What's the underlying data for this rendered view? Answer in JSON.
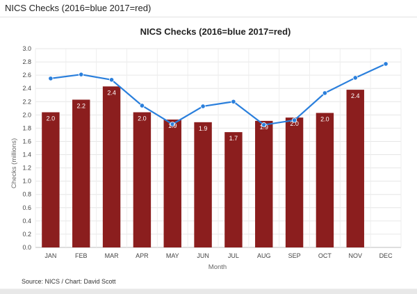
{
  "page": {
    "header_title": "NICS Checks (2016=blue 2017=red)"
  },
  "chart_data": {
    "type": "bar",
    "title": "NICS Checks (2016=blue 2017=red)",
    "xlabel": "Month",
    "ylabel": "Checks (millions)",
    "ylim": [
      0,
      3.0
    ],
    "yticks": [
      "0.0",
      "0.2",
      "0.4",
      "0.6",
      "0.8",
      "1.0",
      "1.2",
      "1.4",
      "1.6",
      "1.8",
      "2.0",
      "2.2",
      "2.4",
      "2.6",
      "2.8",
      "3.0"
    ],
    "categories": [
      "JAN",
      "FEB",
      "MAR",
      "APR",
      "MAY",
      "JUN",
      "JUL",
      "AUG",
      "SEP",
      "OCT",
      "NOV",
      "DEC"
    ],
    "grid": true,
    "series": [
      {
        "type": "bar",
        "color": "#8b1e1e",
        "values": [
          2.04,
          2.23,
          2.43,
          2.04,
          1.93,
          1.89,
          1.74,
          1.91,
          1.96,
          2.03,
          2.38,
          null
        ],
        "data_labels": [
          "2.0",
          "2.2",
          "2.4",
          "2.0",
          "1.9",
          "1.9",
          "1.7",
          "1.9",
          "2.0",
          "2.0",
          "2.4",
          ""
        ]
      },
      {
        "type": "line",
        "color": "#2a7fdc",
        "values": [
          2.55,
          2.61,
          2.53,
          2.14,
          1.86,
          2.13,
          2.2,
          1.85,
          1.92,
          2.33,
          2.56,
          2.77
        ]
      }
    ],
    "source": "Source: NICS / Chart: David Scott"
  }
}
